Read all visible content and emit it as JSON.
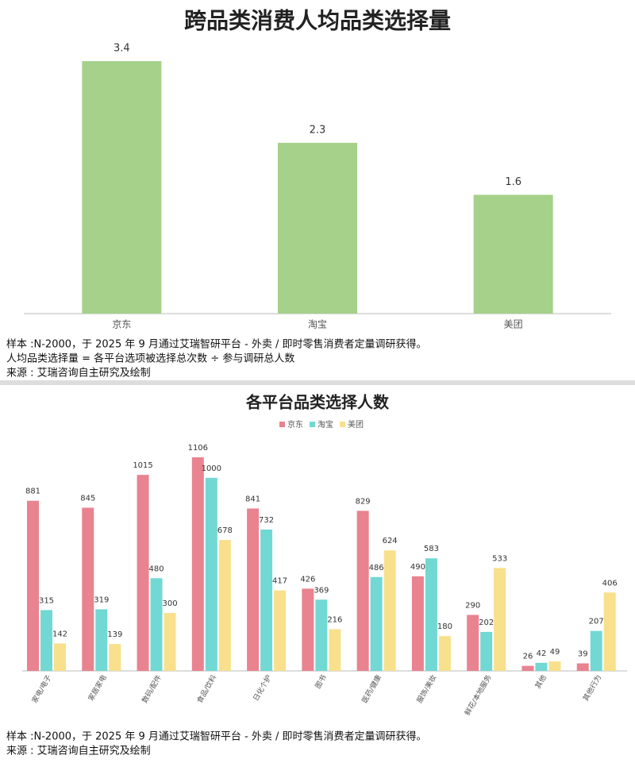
{
  "chart_data": [
    {
      "type": "bar",
      "title": "跨品类消费人均品类选择量",
      "categories": [
        "京东",
        "淘宝",
        "美团"
      ],
      "values": [
        3.4,
        2.3,
        1.6
      ],
      "color": "#a5d18a",
      "notes": [
        "样本 :N-2000，于 2025 年 9 月通过艾瑞智研平台 - 外卖 / 即时零售消费者定量调研获得。",
        "人均品类选择量 = 各平台选项被选择总次数 ÷ 参与调研总人数",
        "来源 : 艾瑞咨询自主研究及绘制"
      ]
    },
    {
      "type": "grouped-bar",
      "title": "各平台品类选择人数",
      "categories": [
        "家电/电子",
        "家居家电",
        "数码/配件",
        "食品/饮料",
        "日化个护",
        "图书",
        "医药/健康",
        "服饰/美妆",
        "鲜花/本地服务",
        "其他",
        "其他行为"
      ],
      "series": [
        {
          "name": "京东",
          "color": "#e8838f",
          "values": [
            881,
            845,
            1015,
            1106,
            841,
            426,
            829,
            490,
            290,
            26,
            39
          ]
        },
        {
          "name": "淘宝",
          "color": "#72d8d3",
          "values": [
            315,
            319,
            480,
            1000,
            732,
            369,
            486,
            583,
            202,
            42,
            207
          ]
        },
        {
          "name": "美团",
          "color": "#f8e08c",
          "values": [
            142,
            139,
            300,
            678,
            417,
            216,
            624,
            180,
            533,
            49,
            406
          ]
        }
      ],
      "notes": [
        "样本 :N-2000，于 2025 年 9 月通过艾瑞智研平台 - 外卖 / 即时零售消费者定量调研获得。",
        "来源 : 艾瑞咨询自主研究及绘制"
      ]
    }
  ]
}
